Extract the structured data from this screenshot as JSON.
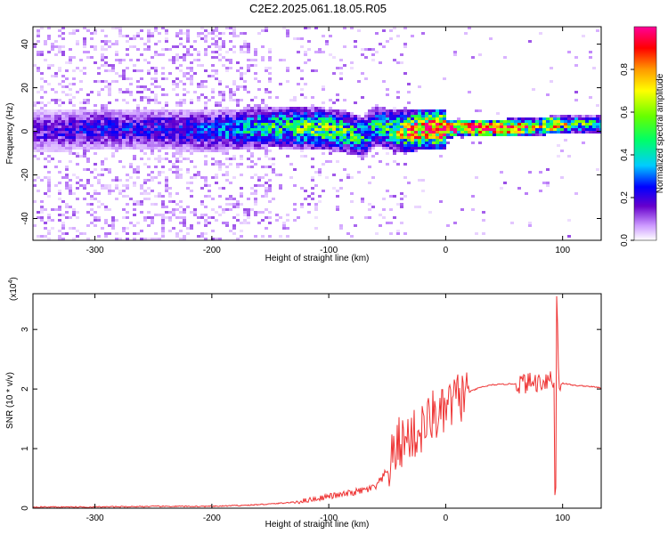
{
  "title": "C2E2.2025.061.18.05.R05",
  "chart_data": [
    {
      "type": "heatmap",
      "title": "C2E2.2025.061.18.05.R05",
      "xlabel": "Height of straight line (km)",
      "ylabel": "Frequency (Hz)",
      "xlim": [
        -353,
        133
      ],
      "ylim": [
        -50,
        48
      ],
      "xticks": [
        -300,
        -200,
        -100,
        0,
        100
      ],
      "xtick_labels": [
        "-300",
        "-200",
        "-100",
        "0",
        "100"
      ],
      "yticks": [
        -40,
        -20,
        0,
        20,
        40
      ],
      "ytick_labels": [
        "-40",
        "-20",
        "0",
        "20",
        "40"
      ],
      "ridge": {
        "x": [
          -353,
          -300,
          -250,
          -200,
          -150,
          -100,
          -80,
          -70,
          -60,
          -50,
          -40,
          -30,
          -20,
          -10,
          0,
          10,
          30,
          50,
          80,
          90,
          100,
          133
        ],
        "center": [
          0,
          1,
          1,
          0,
          2,
          1,
          -1,
          -3,
          3,
          1,
          0,
          0,
          1,
          1,
          1,
          1.5,
          1.5,
          1.5,
          2,
          3,
          3,
          3
        ],
        "amplitude": [
          0.2,
          0.25,
          0.25,
          0.3,
          0.45,
          0.55,
          0.5,
          0.45,
          0.4,
          0.45,
          0.6,
          0.75,
          0.85,
          0.9,
          0.9,
          0.92,
          0.95,
          0.9,
          0.6,
          0.85,
          0.6,
          0.45
        ]
      },
      "colorbar": {
        "label": "Normalized spectral amplitude",
        "range": [
          0,
          1
        ],
        "ticks": [
          0.0,
          0.2,
          0.4,
          0.6,
          0.8
        ],
        "tick_labels": [
          "0.0",
          "0.2",
          "0.4",
          "0.6",
          "0.8"
        ],
        "colors": [
          "#ffffff",
          "#cc99ff",
          "#6600cc",
          "#0000ff",
          "#00ccff",
          "#00ff66",
          "#66ff00",
          "#ffff00",
          "#ff9900",
          "#ff0000",
          "#ff0099"
        ]
      }
    },
    {
      "type": "line",
      "xlabel": "Height of straight line (km)",
      "ylabel": "SNR (10 * v/v)",
      "y_multiplier": "(x10",
      "y_multiplier_exp": "4",
      "y_multiplier_close": ")",
      "xlim": [
        -353,
        133
      ],
      "ylim": [
        0,
        3.6
      ],
      "xticks": [
        -300,
        -200,
        -100,
        0,
        100
      ],
      "xtick_labels": [
        "-300",
        "-200",
        "-100",
        "0",
        "100"
      ],
      "yticks": [
        0,
        1,
        2,
        3
      ],
      "ytick_labels": [
        "0",
        "1",
        "2",
        "3"
      ],
      "color": "#ee3333",
      "series": [
        {
          "name": "SNR",
          "x": [
            -353,
            -300,
            -250,
            -200,
            -170,
            -150,
            -130,
            -110,
            -100,
            -90,
            -80,
            -70,
            -60,
            -50,
            -45,
            -40,
            -35,
            -30,
            -25,
            -20,
            -15,
            -10,
            -5,
            0,
            5,
            10,
            20,
            30,
            40,
            50,
            60,
            70,
            80,
            85,
            90,
            93,
            95,
            97,
            100,
            110,
            120,
            133
          ],
          "y": [
            0.02,
            0.02,
            0.03,
            0.03,
            0.05,
            0.07,
            0.1,
            0.16,
            0.2,
            0.22,
            0.26,
            0.3,
            0.35,
            0.6,
            0.85,
            1.1,
            1.1,
            1.25,
            1.2,
            1.35,
            1.45,
            1.6,
            1.5,
            1.65,
            1.75,
            1.85,
            1.95,
            2.03,
            2.07,
            2.08,
            2.09,
            2.1,
            2.12,
            2.15,
            2.2,
            2.0,
            3.6,
            2.05,
            2.1,
            2.06,
            2.05,
            2.02
          ]
        }
      ]
    }
  ]
}
